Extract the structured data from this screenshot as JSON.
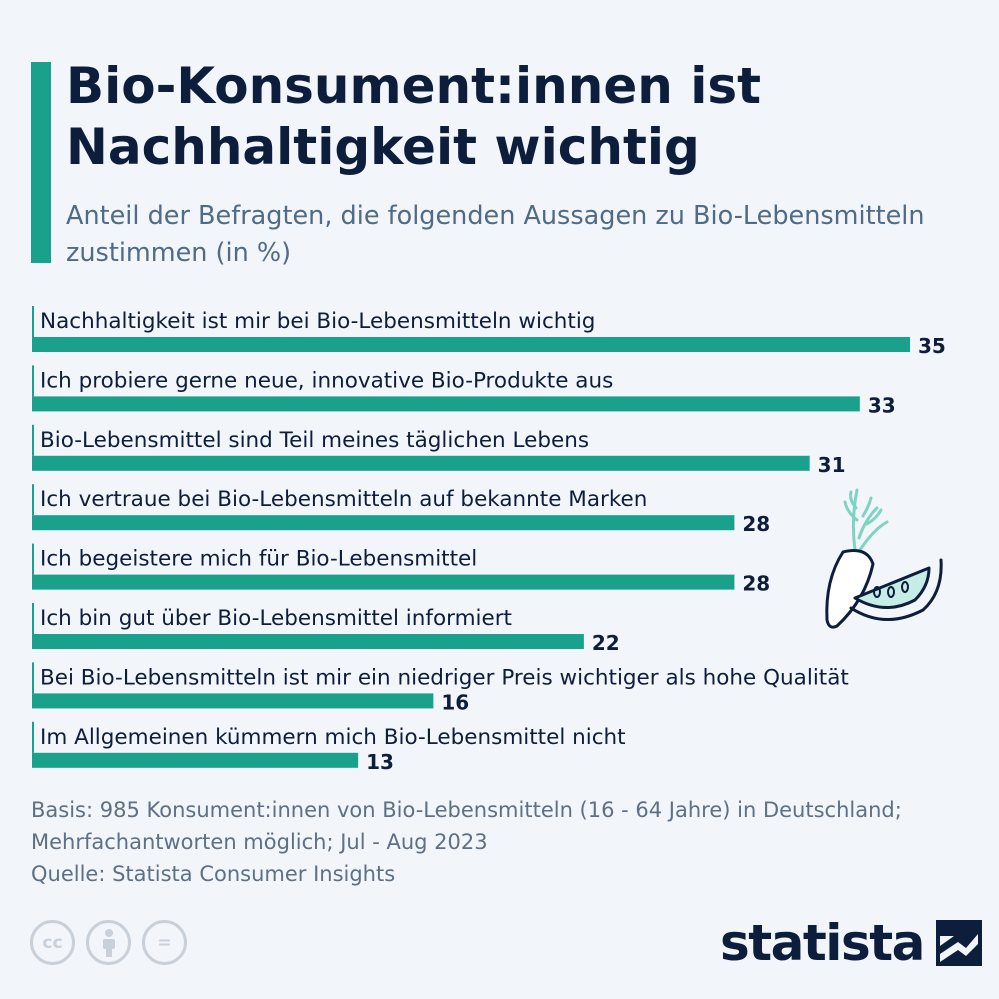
{
  "title": "Bio-Konsument:innen ist Nachhaltigkeit wichtig",
  "subtitle": "Anteil der Befragten, die folgenden Aussagen zu Bio-Lebensmitteln zustimmen (in %)",
  "colors": {
    "bar": "#1aa18b",
    "title": "#0d1e3c",
    "subtitle": "#4f6b86",
    "background": "#f2f5f9"
  },
  "chart_data": {
    "type": "bar",
    "orientation": "horizontal",
    "categories": [
      "Nachhaltigkeit ist mir bei Bio-Lebensmitteln wichtig",
      "Ich probiere gerne neue, innovative Bio-Produkte aus",
      "Bio-Lebensmittel sind Teil meines täglichen Lebens",
      "Ich vertraue bei Bio-Lebensmitteln auf bekannte Marken",
      "Ich begeistere mich für Bio-Lebensmittel",
      "Ich bin gut über Bio-Lebensmittel informiert",
      "Bei Bio-Lebensmitteln ist mir ein niedriger Preis wichtiger als hohe Qualität",
      "Im Allgemeinen kümmern mich Bio-Lebensmittel nicht"
    ],
    "values": [
      35,
      33,
      31,
      28,
      28,
      22,
      16,
      13
    ],
    "xlim": [
      0,
      35
    ],
    "grid": false,
    "legend": "none"
  },
  "footer": {
    "basis_line1": "Basis: 985 Konsument:innen von Bio-Lebensmitteln (16 - 64 Jahre) in Deutschland;",
    "basis_line2": "Mehrfachantworten möglich; Jul - Aug 2023",
    "source": "Quelle: Statista Consumer Insights"
  },
  "license_icons": [
    "cc-icon",
    "by-icon",
    "nd-icon"
  ],
  "license_symbols": {
    "cc": "cc",
    "nd": "="
  },
  "logo": "statista",
  "illustration": "carrot-and-melon-icon"
}
